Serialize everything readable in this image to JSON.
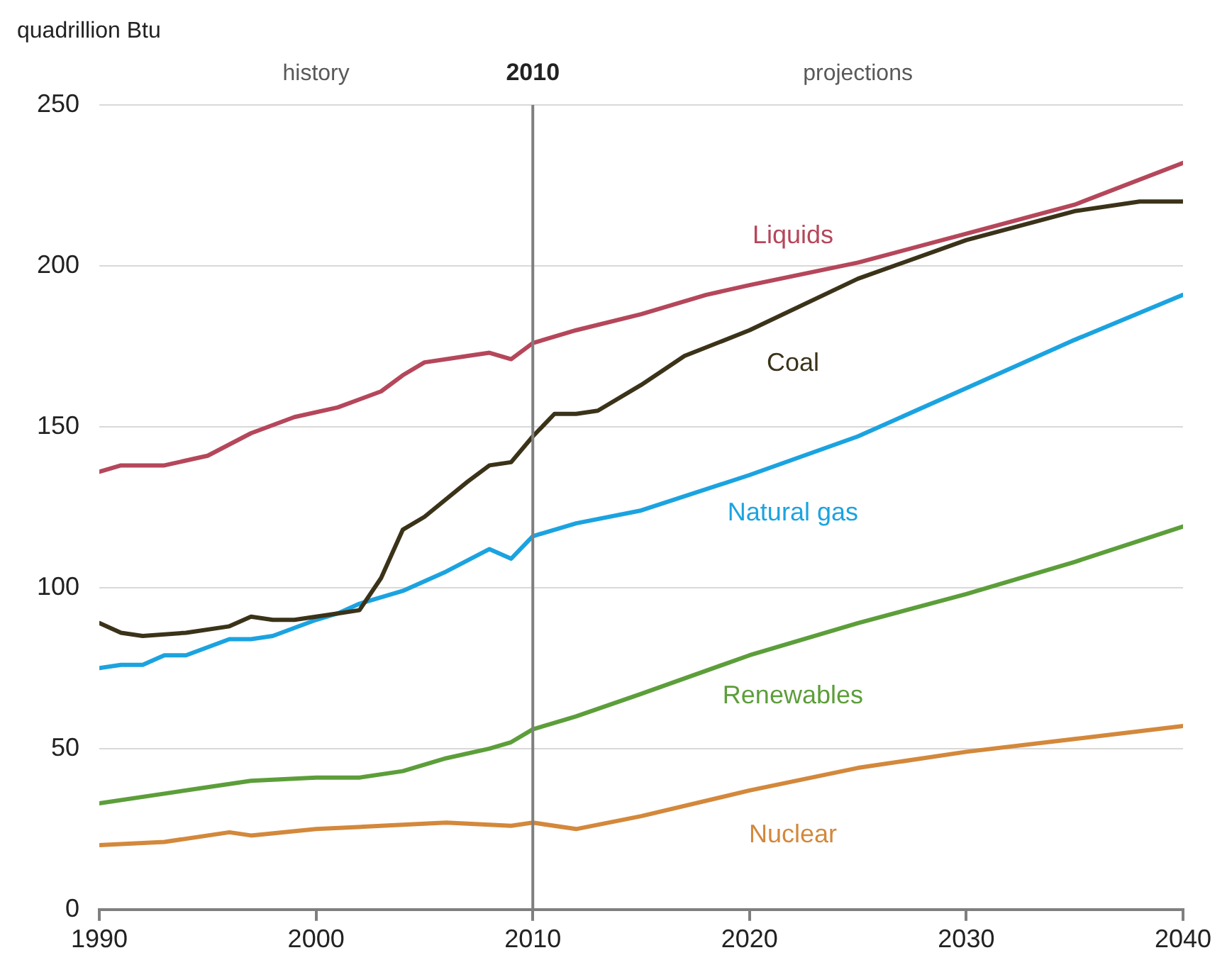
{
  "chart_data": {
    "type": "line",
    "ylabel": "quadrillion Btu",
    "xlim": [
      1990,
      2040
    ],
    "xticks": [
      1990,
      2000,
      2010,
      2020,
      2030,
      2040
    ],
    "ylim": [
      0,
      250
    ],
    "yticks": [
      0,
      50,
      100,
      150,
      200,
      250
    ],
    "grid": "y",
    "legend": false,
    "marker": "none",
    "line_style": "solid",
    "ref_lines": [
      {
        "axis": "x",
        "value": 2010,
        "label": "2010",
        "color": "#7f7f7f"
      }
    ],
    "annotations": [
      "history",
      "projections"
    ],
    "series": [
      {
        "name": "Liquids",
        "color": "#b5475b",
        "x": [
          1990,
          1991,
          1993,
          1995,
          1997,
          1999,
          2001,
          2003,
          2004,
          2005,
          2007,
          2008,
          2009,
          2010,
          2012,
          2015,
          2018,
          2020,
          2025,
          2030,
          2035,
          2040
        ],
        "values": [
          136,
          138,
          138,
          141,
          148,
          153,
          156,
          161,
          166,
          170,
          172,
          173,
          171,
          176,
          180,
          185,
          191,
          194,
          201,
          210,
          219,
          232
        ]
      },
      {
        "name": "Coal",
        "color": "#3b3319",
        "x": [
          1990,
          1991,
          1992,
          1994,
          1996,
          1997,
          1998,
          1999,
          2001,
          2002,
          2003,
          2004,
          2005,
          2007,
          2008,
          2009,
          2010,
          2011,
          2012,
          2013,
          2015,
          2017,
          2020,
          2025,
          2030,
          2035,
          2038,
          2040
        ],
        "values": [
          89,
          86,
          85,
          86,
          88,
          91,
          90,
          90,
          92,
          93,
          103,
          118,
          122,
          133,
          138,
          139,
          147,
          154,
          154,
          155,
          163,
          172,
          180,
          196,
          208,
          217,
          220,
          220
        ]
      },
      {
        "name": "Natural gas",
        "color": "#1ba3e0",
        "x": [
          1990,
          1991,
          1992,
          1993,
          1994,
          1996,
          1997,
          1998,
          2000,
          2001,
          2002,
          2004,
          2006,
          2008,
          2009,
          2010,
          2012,
          2015,
          2020,
          2025,
          2030,
          2035,
          2040
        ],
        "values": [
          75,
          76,
          76,
          79,
          79,
          84,
          84,
          85,
          90,
          92,
          95,
          99,
          105,
          112,
          109,
          116,
          120,
          124,
          135,
          147,
          162,
          177,
          191
        ]
      },
      {
        "name": "Renewables",
        "color": "#5c9e3a",
        "x": [
          1990,
          1993,
          1995,
          1997,
          2000,
          2002,
          2004,
          2006,
          2008,
          2009,
          2010,
          2012,
          2015,
          2020,
          2025,
          2030,
          2035,
          2040
        ],
        "values": [
          33,
          36,
          38,
          40,
          41,
          41,
          43,
          47,
          50,
          52,
          56,
          60,
          67,
          79,
          89,
          98,
          108,
          119
        ]
      },
      {
        "name": "Nuclear",
        "color": "#d3883b",
        "x": [
          1990,
          1993,
          1996,
          1997,
          2000,
          2003,
          2006,
          2009,
          2010,
          2012,
          2015,
          2020,
          2025,
          2030,
          2035,
          2040
        ],
        "values": [
          20,
          21,
          24,
          23,
          25,
          26,
          27,
          26,
          27,
          25,
          29,
          37,
          44,
          49,
          53,
          57
        ]
      }
    ]
  }
}
